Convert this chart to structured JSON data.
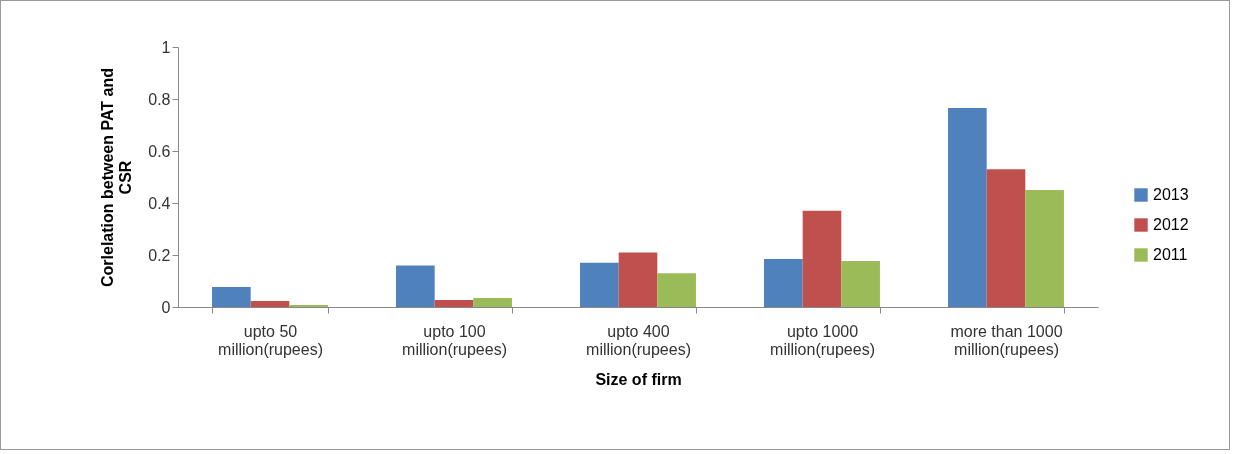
{
  "chart_data": {
    "type": "bar",
    "xlabel": "Size of firm",
    "ylabel": "Corlelation between PAT and\nCSR",
    "categories": [
      "upto 50\nmillion(rupees)",
      "upto 100\nmillion(rupees)",
      "upto 400\nmillion(rupees)",
      "upto 1000\nmillion(rupees)",
      "more than 1000\nmillion(rupees)"
    ],
    "series": [
      {
        "name": "2013",
        "color": "#4f81bd",
        "values": [
          0.077,
          0.16,
          0.17,
          0.185,
          0.765
        ]
      },
      {
        "name": "2012",
        "color": "#c0504d",
        "values": [
          0.023,
          0.027,
          0.21,
          0.37,
          0.53
        ]
      },
      {
        "name": "2011",
        "color": "#9bbb59",
        "values": [
          0.008,
          0.035,
          0.13,
          0.177,
          0.45
        ]
      }
    ],
    "ylim": [
      0,
      1
    ],
    "yticks": [
      0,
      0.2,
      0.4,
      0.6,
      0.8,
      1
    ],
    "grid": false,
    "legend": "right"
  }
}
